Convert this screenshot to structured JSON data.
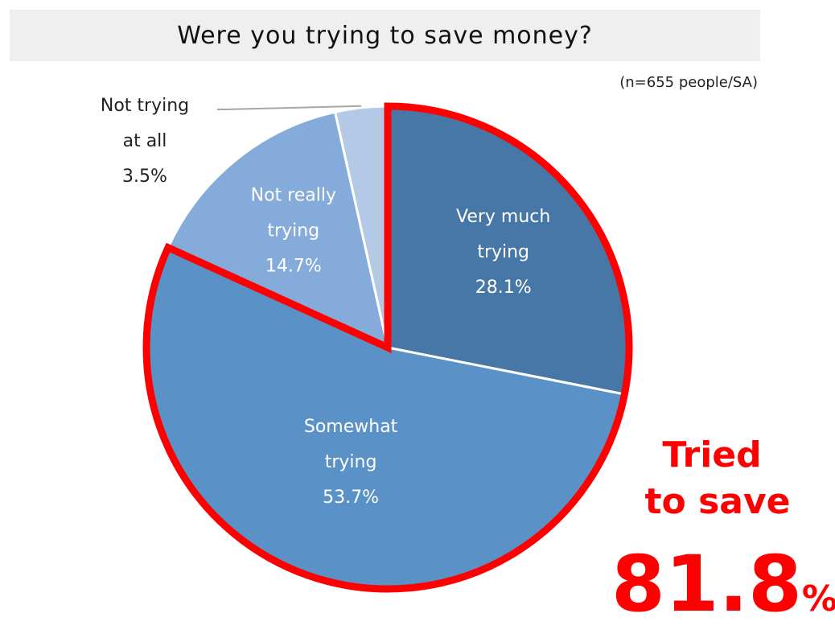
{
  "title": "Were you trying to save money?",
  "sample_note": "(n=655 people/SA)",
  "chart_data": {
    "type": "pie",
    "title": "Were you trying to save money?",
    "start_angle_deg": 0,
    "direction": "clockwise",
    "slices": [
      {
        "label_lines": [
          "Very much",
          "trying"
        ],
        "value": 28.1,
        "value_label": "28.1%",
        "color": "#4677a6",
        "highlighted": true
      },
      {
        "label_lines": [
          "Somewhat",
          "trying"
        ],
        "value": 53.7,
        "value_label": "53.7%",
        "color": "#5a92c7",
        "highlighted": true
      },
      {
        "label_lines": [
          "Not really",
          "trying"
        ],
        "value": 14.7,
        "value_label": "14.7%",
        "color": "#85abdb",
        "highlighted": false
      },
      {
        "label_lines": [
          "Not trying",
          "at all"
        ],
        "value": 3.5,
        "value_label": "3.5%",
        "color": "#b4c9e5",
        "highlighted": false
      }
    ],
    "highlight_color": "#ff0000",
    "label_text_color_inside": "#ffffff",
    "label_text_color_outside": "#222222"
  },
  "callout": {
    "line1": "Tried",
    "line2": "to save",
    "number": "81.8",
    "unit": "%",
    "color": "#ff0000"
  }
}
